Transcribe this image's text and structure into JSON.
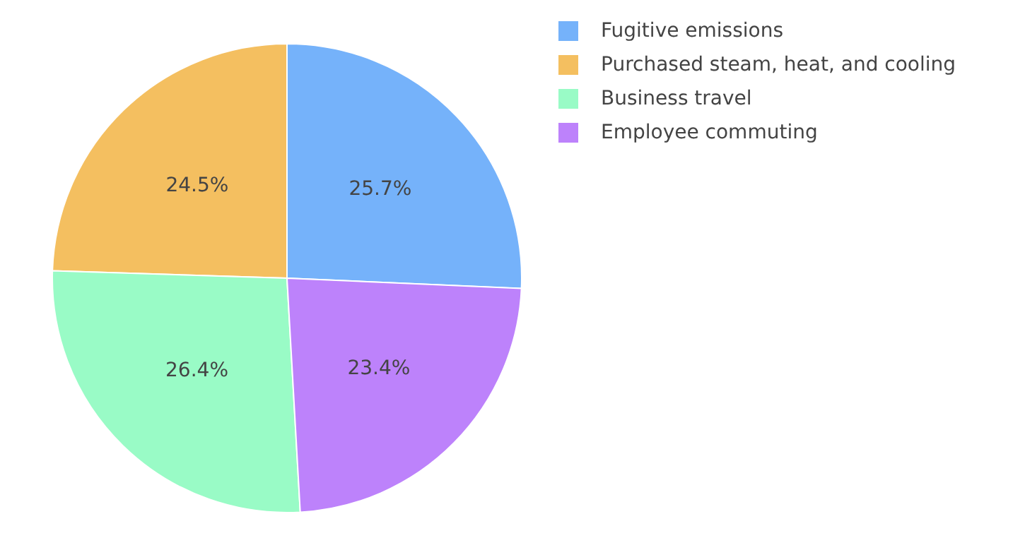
{
  "chart_data": {
    "type": "pie",
    "categories": [
      "Fugitive emissions",
      "Purchased steam, heat, and cooling",
      "Business travel",
      "Employee commuting"
    ],
    "values": [
      25.7,
      24.5,
      26.4,
      23.4
    ],
    "colors": [
      "#75b2fa",
      "#f4bf60",
      "#99fbc6",
      "#bd82fb"
    ],
    "value_labels": [
      "25.7%",
      "24.5%",
      "26.4%",
      "23.4%"
    ],
    "legend": "top right"
  }
}
